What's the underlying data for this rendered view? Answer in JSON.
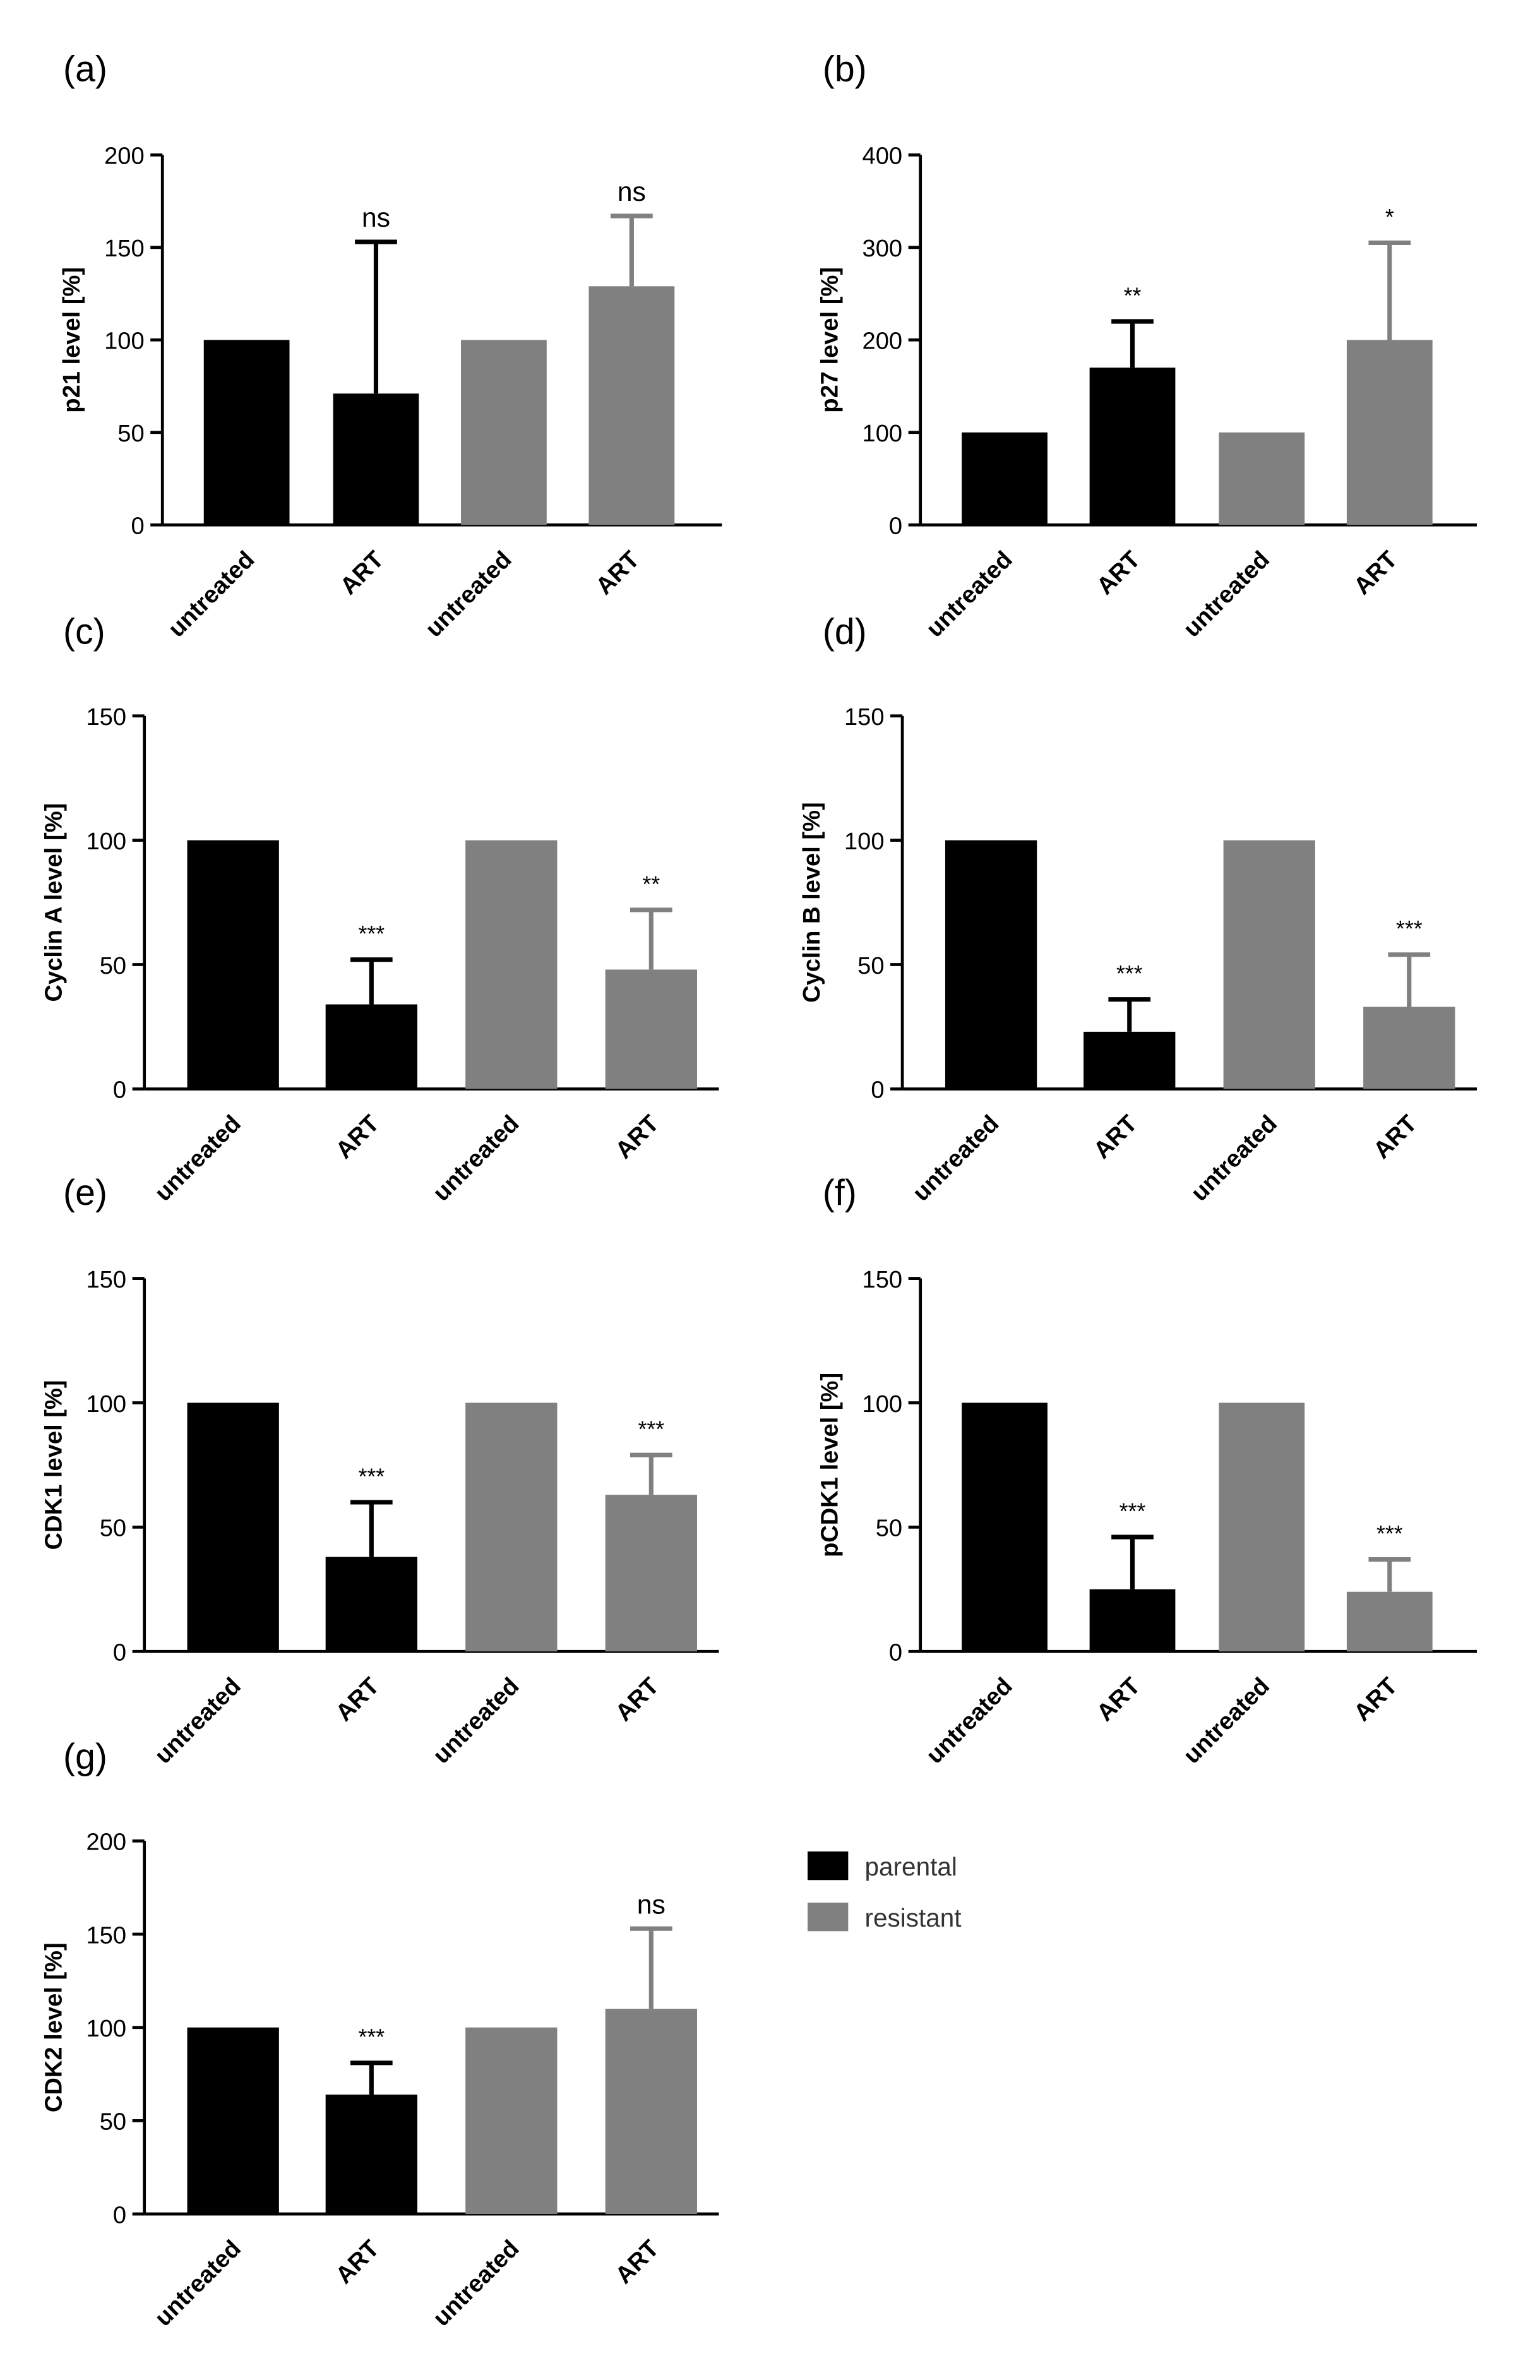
{
  "colors": {
    "parental": "#000000",
    "resistant": "#808080",
    "axis": "#000000"
  },
  "legend": {
    "items": [
      {
        "label": "parental",
        "color": "#000000"
      },
      {
        "label": "resistant",
        "color": "#808080"
      }
    ]
  },
  "chart_data": [
    {
      "panel": "(a)",
      "type": "bar",
      "ylabel": "p21 level [%]",
      "ylim": [
        0,
        200
      ],
      "yticks": [
        0,
        50,
        100,
        150,
        200
      ],
      "categories": [
        "untreated",
        "ART",
        "untreated",
        "ART"
      ],
      "groups": [
        "parental",
        "parental",
        "resistant",
        "resistant"
      ],
      "values": [
        100,
        71,
        100,
        129
      ],
      "errors": [
        0,
        82,
        0,
        38
      ],
      "significance": [
        "",
        "ns",
        "",
        "ns"
      ]
    },
    {
      "panel": "(b)",
      "type": "bar",
      "ylabel": "p27 level [%]",
      "ylim": [
        0,
        400
      ],
      "yticks": [
        0,
        100,
        200,
        300,
        400
      ],
      "categories": [
        "untreated",
        "ART",
        "untreated",
        "ART"
      ],
      "groups": [
        "parental",
        "parental",
        "resistant",
        "resistant"
      ],
      "values": [
        100,
        170,
        100,
        200
      ],
      "errors": [
        0,
        50,
        0,
        105
      ],
      "significance": [
        "",
        "**",
        "",
        "*"
      ]
    },
    {
      "panel": "(c)",
      "type": "bar",
      "ylabel": "Cyclin A level [%]",
      "ylim": [
        0,
        150
      ],
      "yticks": [
        0,
        50,
        100,
        150
      ],
      "categories": [
        "untreated",
        "ART",
        "untreated",
        "ART"
      ],
      "groups": [
        "parental",
        "parental",
        "resistant",
        "resistant"
      ],
      "values": [
        100,
        34,
        100,
        48
      ],
      "errors": [
        0,
        18,
        0,
        24
      ],
      "significance": [
        "",
        "***",
        "",
        "**"
      ]
    },
    {
      "panel": "(d)",
      "type": "bar",
      "ylabel": "Cyclin B level [%]",
      "ylim": [
        0,
        150
      ],
      "yticks": [
        0,
        50,
        100,
        150
      ],
      "categories": [
        "untreated",
        "ART",
        "untreated",
        "ART"
      ],
      "groups": [
        "parental",
        "parental",
        "resistant",
        "resistant"
      ],
      "values": [
        100,
        23,
        100,
        33
      ],
      "errors": [
        0,
        13,
        0,
        21
      ],
      "significance": [
        "",
        "***",
        "",
        "***"
      ]
    },
    {
      "panel": "(e)",
      "type": "bar",
      "ylabel": "CDK1 level [%]",
      "ylim": [
        0,
        150
      ],
      "yticks": [
        0,
        50,
        100,
        150
      ],
      "categories": [
        "untreated",
        "ART",
        "untreated",
        "ART"
      ],
      "groups": [
        "parental",
        "parental",
        "resistant",
        "resistant"
      ],
      "values": [
        100,
        38,
        100,
        63
      ],
      "errors": [
        0,
        22,
        0,
        16
      ],
      "significance": [
        "",
        "***",
        "",
        "***"
      ]
    },
    {
      "panel": "(f)",
      "type": "bar",
      "ylabel": "pCDK1 level [%]",
      "ylim": [
        0,
        150
      ],
      "yticks": [
        0,
        50,
        100,
        150
      ],
      "categories": [
        "untreated",
        "ART",
        "untreated",
        "ART"
      ],
      "groups": [
        "parental",
        "parental",
        "resistant",
        "resistant"
      ],
      "values": [
        100,
        25,
        100,
        24
      ],
      "errors": [
        0,
        21,
        0,
        13
      ],
      "significance": [
        "",
        "***",
        "",
        "***"
      ]
    },
    {
      "panel": "(g)",
      "type": "bar",
      "ylabel": "CDK2 level [%]",
      "ylim": [
        0,
        200
      ],
      "yticks": [
        0,
        50,
        100,
        150,
        200
      ],
      "categories": [
        "untreated",
        "ART",
        "untreated",
        "ART"
      ],
      "groups": [
        "parental",
        "parental",
        "resistant",
        "resistant"
      ],
      "values": [
        100,
        64,
        100,
        110
      ],
      "errors": [
        0,
        17,
        0,
        43
      ],
      "significance": [
        "",
        "***",
        "",
        "ns"
      ]
    }
  ]
}
